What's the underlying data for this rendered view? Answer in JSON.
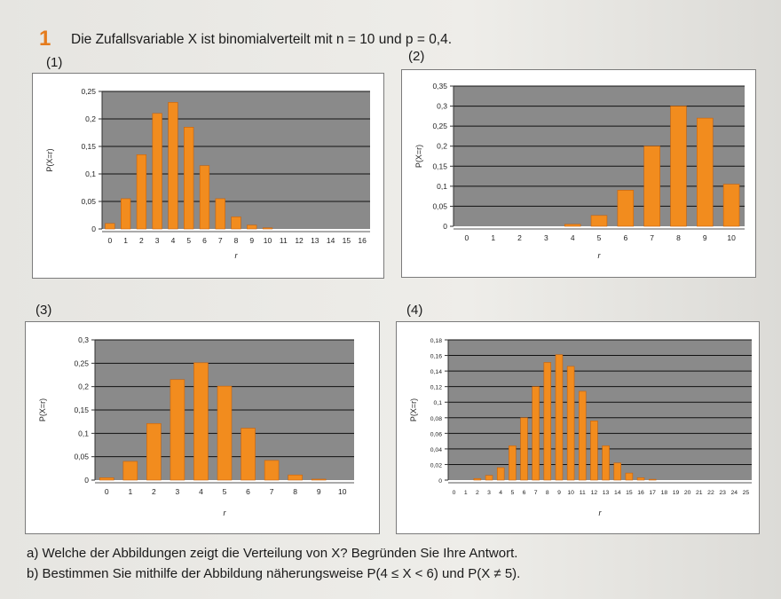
{
  "task": {
    "number": "1",
    "text": "Die Zufallsvariable X ist binomialverteilt mit  n = 10  und  p = 0,4."
  },
  "questions": [
    "a)  Welche der Abbildungen zeigt die Verteilung von X? Begründen Sie Ihre Antwort.",
    "b)  Bestimmen Sie mithilfe der Abbildung näherungsweise  P(4 ≤ X < 6)  und  P(X ≠ 5)."
  ],
  "colors": {
    "bar": "#f28c1e",
    "bar_edge": "#c8620a",
    "plot_bg": "#8a8a8a",
    "grid": "#111111"
  },
  "chart_data": [
    {
      "label": "(1)",
      "type": "bar",
      "categories": [
        "0",
        "1",
        "2",
        "3",
        "4",
        "5",
        "6",
        "7",
        "8",
        "9",
        "10",
        "11",
        "12",
        "13",
        "14",
        "15",
        "16"
      ],
      "values": [
        0.01,
        0.055,
        0.135,
        0.21,
        0.23,
        0.185,
        0.115,
        0.055,
        0.022,
        0.007,
        0.002,
        0,
        0,
        0,
        0,
        0,
        0
      ],
      "ylim": [
        0,
        0.25
      ],
      "yticks": [
        "0",
        "0,05",
        "0,1",
        "0,15",
        "0,2",
        "0,25"
      ],
      "yticks_values": [
        0,
        0.05,
        0.1,
        0.15,
        0.2,
        0.25
      ],
      "xlabel": "r",
      "ylabel": "P(X=r)",
      "grid": true
    },
    {
      "label": "(2)",
      "type": "bar",
      "categories": [
        "0",
        "1",
        "2",
        "3",
        "4",
        "5",
        "6",
        "7",
        "8",
        "9",
        "10"
      ],
      "values": [
        0,
        0,
        0,
        0,
        0.005,
        0.027,
        0.09,
        0.2,
        0.3,
        0.27,
        0.105
      ],
      "ylim": [
        0,
        0.35
      ],
      "yticks": [
        "0",
        "0,05",
        "0,1",
        "0,15",
        "0,2",
        "0,25",
        "0,3",
        "0,35"
      ],
      "yticks_values": [
        0,
        0.05,
        0.1,
        0.15,
        0.2,
        0.25,
        0.3,
        0.35
      ],
      "xlabel": "r",
      "ylabel": "P(X=r)",
      "grid": true
    },
    {
      "label": "(3)",
      "type": "bar",
      "categories": [
        "0",
        "1",
        "2",
        "3",
        "4",
        "5",
        "6",
        "7",
        "8",
        "9",
        "10"
      ],
      "values": [
        0.005,
        0.04,
        0.121,
        0.215,
        0.251,
        0.201,
        0.111,
        0.042,
        0.011,
        0.002,
        0
      ],
      "ylim": [
        0,
        0.3
      ],
      "yticks": [
        "0",
        "0,05",
        "0,1",
        "0,15",
        "0,2",
        "0,25",
        "0,3"
      ],
      "yticks_values": [
        0,
        0.05,
        0.1,
        0.15,
        0.2,
        0.25,
        0.3
      ],
      "xlabel": "r",
      "ylabel": "P(X=r)",
      "grid": true
    },
    {
      "label": "(4)",
      "type": "bar",
      "categories": [
        "0",
        "1",
        "2",
        "3",
        "4",
        "5",
        "6",
        "7",
        "8",
        "9",
        "10",
        "11",
        "12",
        "13",
        "14",
        "15",
        "16",
        "17",
        "18",
        "19",
        "20",
        "21",
        "22",
        "23",
        "24",
        "25"
      ],
      "values": [
        0,
        0,
        0.002,
        0.006,
        0.016,
        0.044,
        0.08,
        0.12,
        0.151,
        0.161,
        0.146,
        0.114,
        0.076,
        0.044,
        0.022,
        0.009,
        0.003,
        0.001,
        0,
        0,
        0,
        0,
        0,
        0,
        0,
        0
      ],
      "ylim": [
        0,
        0.18
      ],
      "yticks": [
        "0",
        "0,02",
        "0,04",
        "0,06",
        "0,08",
        "0,1",
        "0,12",
        "0,14",
        "0,16",
        "0,18"
      ],
      "yticks_values": [
        0,
        0.02,
        0.04,
        0.06,
        0.08,
        0.1,
        0.12,
        0.14,
        0.16,
        0.18
      ],
      "xlabel": "r",
      "ylabel": "P(X=r)",
      "grid": true
    }
  ]
}
